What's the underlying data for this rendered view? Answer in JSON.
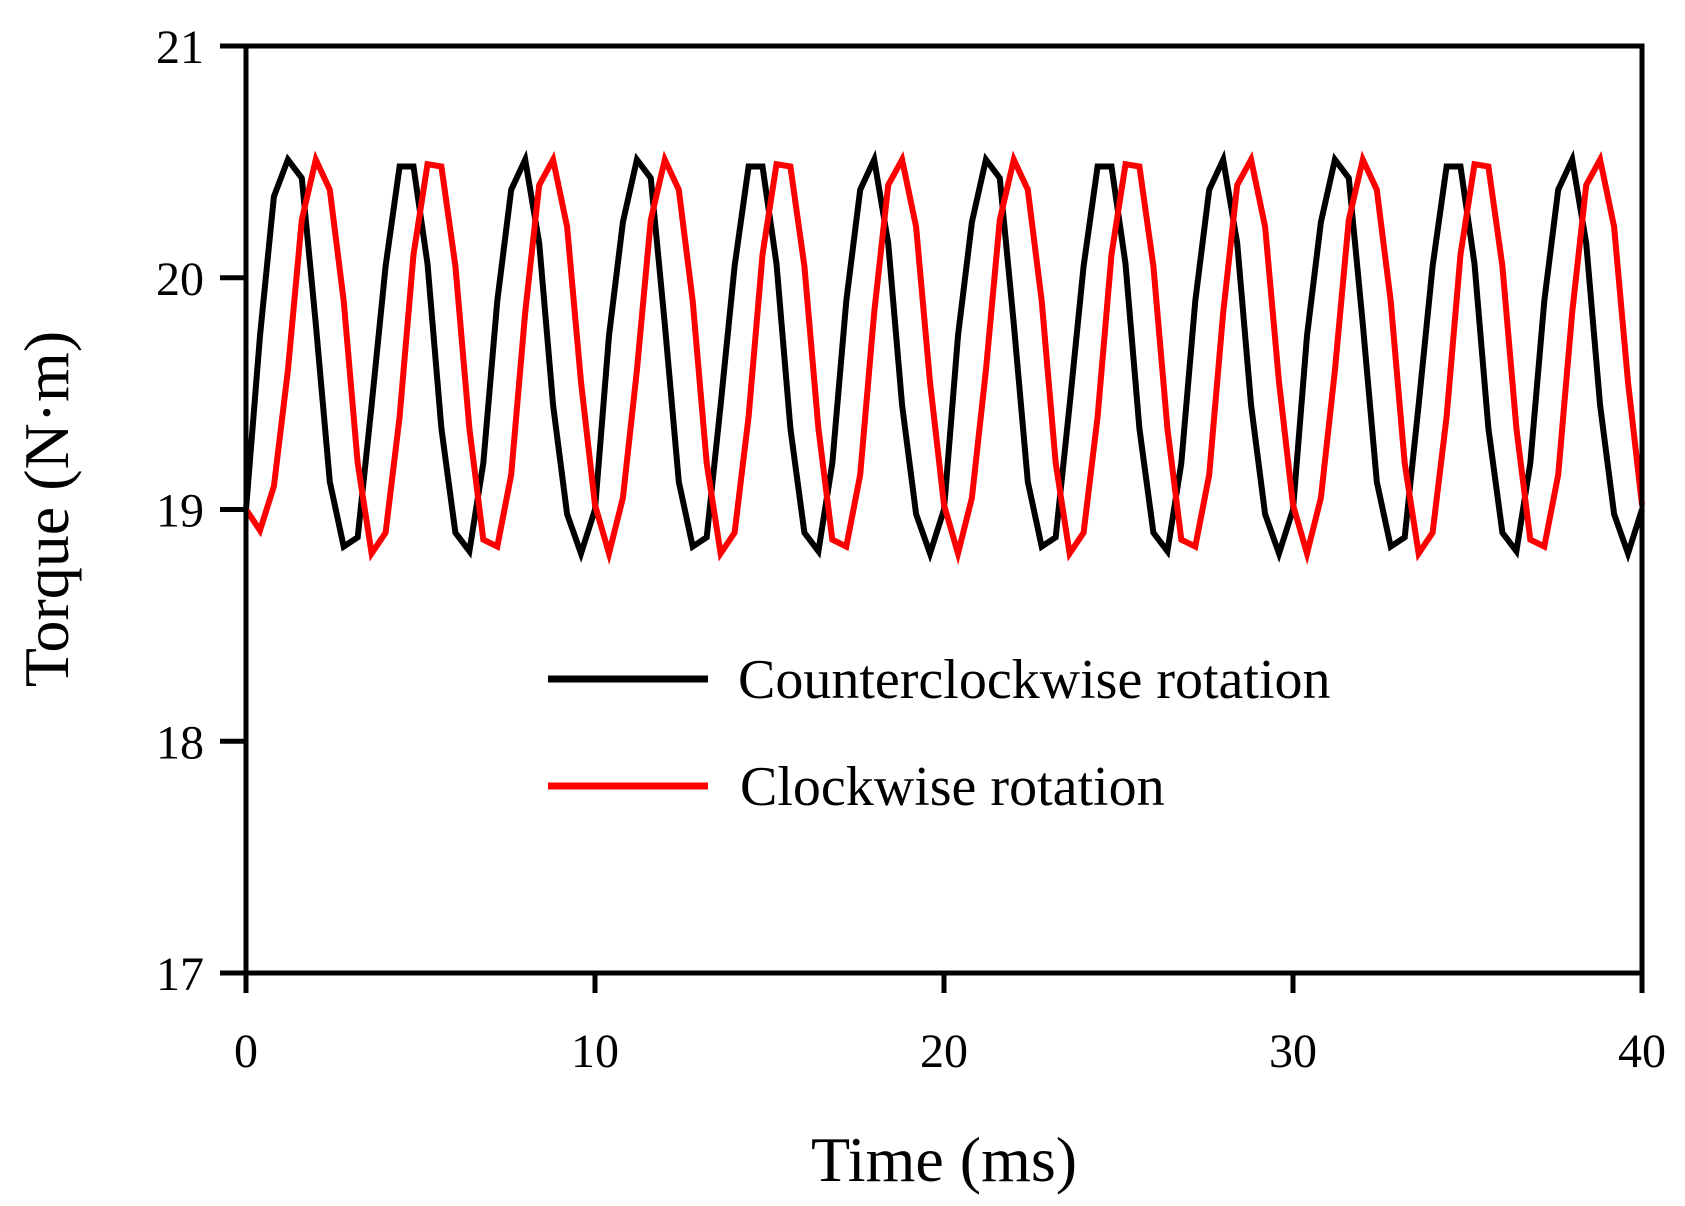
{
  "chart_data": {
    "type": "line",
    "title": "",
    "xlabel": "Time (ms)",
    "ylabel": "Torque (N·m)",
    "xlim": [
      0,
      40
    ],
    "ylim": [
      17,
      21
    ],
    "xticks": [
      0,
      10,
      20,
      30,
      40
    ],
    "yticks": [
      17,
      18,
      19,
      20,
      21
    ],
    "xtick_labels": [
      "0",
      "10",
      "20",
      "30",
      "40"
    ],
    "ytick_labels": [
      "17",
      "18",
      "19",
      "20",
      "21"
    ],
    "grid": false,
    "legend_position": "center",
    "series": [
      {
        "name": "Counterclockwise rotation",
        "color": "#000000",
        "x": [
          0,
          0.4,
          0.8,
          1.2,
          1.6,
          2.0,
          2.4,
          2.8,
          3.2,
          3.6,
          4.0,
          4.4,
          4.8,
          5.2,
          5.6,
          6.0,
          6.4,
          6.8,
          7.2,
          7.6,
          8.0,
          8.4,
          8.8,
          9.2,
          9.6,
          10.0,
          10.4,
          10.8,
          11.2,
          11.6,
          12.0,
          12.4,
          12.8,
          13.2,
          13.6,
          14.0,
          14.4,
          14.8,
          15.2,
          15.6,
          16.0,
          16.4,
          16.8,
          17.2,
          17.6,
          18.0,
          18.4,
          18.8,
          19.2,
          19.6,
          20.0,
          20.4,
          20.8,
          21.2,
          21.6,
          22.0,
          22.4,
          22.8,
          23.2,
          23.6,
          24.0,
          24.4,
          24.8,
          25.2,
          25.6,
          26.0,
          26.4,
          26.8,
          27.2,
          27.6,
          28.0,
          28.4,
          28.8,
          29.2,
          29.6,
          30.0,
          30.4,
          30.8,
          31.2,
          31.6,
          32.0,
          32.4,
          32.8,
          33.2,
          33.6,
          34.0,
          34.4,
          34.8,
          35.2,
          35.6,
          36.0,
          36.4,
          36.8,
          37.2,
          37.6,
          38.0,
          38.4,
          38.8,
          39.2,
          39.6,
          40.0
        ],
        "values": [
          19.0,
          19.75,
          20.35,
          20.51,
          20.43,
          19.8,
          19.12,
          18.84,
          18.88,
          19.45,
          20.05,
          20.48,
          20.48,
          20.06,
          19.35,
          18.9,
          18.82,
          19.2,
          19.9,
          20.38,
          20.51,
          20.15,
          19.45,
          18.98,
          18.81,
          19.0,
          19.75,
          20.24,
          20.51,
          20.43,
          19.8,
          19.12,
          18.84,
          18.88,
          19.45,
          20.05,
          20.48,
          20.48,
          20.06,
          19.35,
          18.9,
          18.82,
          19.2,
          19.9,
          20.38,
          20.51,
          20.15,
          19.45,
          18.98,
          18.81,
          19.0,
          19.75,
          20.24,
          20.51,
          20.43,
          19.8,
          19.12,
          18.84,
          18.88,
          19.45,
          20.05,
          20.48,
          20.48,
          20.06,
          19.35,
          18.9,
          18.82,
          19.2,
          19.9,
          20.38,
          20.51,
          20.15,
          19.45,
          18.98,
          18.81,
          19.0,
          19.75,
          20.24,
          20.51,
          20.43,
          19.8,
          19.12,
          18.84,
          18.88,
          19.45,
          20.05,
          20.48,
          20.48,
          20.06,
          19.35,
          18.9,
          18.82,
          19.2,
          19.9,
          20.38,
          20.51,
          20.15,
          19.45,
          18.98,
          18.81,
          19.0
        ]
      },
      {
        "name": "Clockwise rotation",
        "color": "#ff0000",
        "x": [
          0,
          0.4,
          0.8,
          1.2,
          1.6,
          2.0,
          2.4,
          2.8,
          3.2,
          3.6,
          4.0,
          4.4,
          4.8,
          5.2,
          5.6,
          6.0,
          6.4,
          6.8,
          7.2,
          7.6,
          8.0,
          8.4,
          8.8,
          9.2,
          9.6,
          10.0,
          10.4,
          10.8,
          11.2,
          11.6,
          12.0,
          12.4,
          12.8,
          13.2,
          13.6,
          14.0,
          14.4,
          14.8,
          15.2,
          15.6,
          16.0,
          16.4,
          16.8,
          17.2,
          17.6,
          18.0,
          18.4,
          18.8,
          19.2,
          19.6,
          20.0,
          20.4,
          20.8,
          21.2,
          21.6,
          22.0,
          22.4,
          22.8,
          23.2,
          23.6,
          24.0,
          24.4,
          24.8,
          25.2,
          25.6,
          26.0,
          26.4,
          26.8,
          27.2,
          27.6,
          28.0,
          28.4,
          28.8,
          29.2,
          29.6,
          30.0,
          30.4,
          30.8,
          31.2,
          31.6,
          32.0,
          32.4,
          32.8,
          33.2,
          33.6,
          34.0,
          34.4,
          34.8,
          35.2,
          35.6,
          36.0,
          36.4,
          36.8,
          37.2,
          37.6,
          38.0,
          38.4,
          38.8,
          39.2,
          39.6,
          40.0
        ],
        "values": [
          19.0,
          18.91,
          19.1,
          19.6,
          20.25,
          20.51,
          20.38,
          19.9,
          19.2,
          18.81,
          18.9,
          19.4,
          20.1,
          20.49,
          20.48,
          20.05,
          19.35,
          18.87,
          18.84,
          19.15,
          19.85,
          20.4,
          20.51,
          20.22,
          19.55,
          19.02,
          18.81,
          19.05,
          19.6,
          20.25,
          20.51,
          20.38,
          19.9,
          19.2,
          18.81,
          18.9,
          19.4,
          20.1,
          20.49,
          20.48,
          20.05,
          19.35,
          18.87,
          18.84,
          19.15,
          19.85,
          20.4,
          20.51,
          20.22,
          19.55,
          19.02,
          18.81,
          19.05,
          19.6,
          20.25,
          20.51,
          20.38,
          19.9,
          19.2,
          18.81,
          18.9,
          19.4,
          20.1,
          20.49,
          20.48,
          20.05,
          19.35,
          18.87,
          18.84,
          19.15,
          19.85,
          20.4,
          20.51,
          20.22,
          19.55,
          19.02,
          18.81,
          19.05,
          19.6,
          20.25,
          20.51,
          20.38,
          19.9,
          19.2,
          18.81,
          18.9,
          19.4,
          20.1,
          20.49,
          20.48,
          20.05,
          19.35,
          18.87,
          18.84,
          19.15,
          19.85,
          20.4,
          20.51,
          20.22,
          19.55,
          19.02
        ]
      }
    ]
  }
}
